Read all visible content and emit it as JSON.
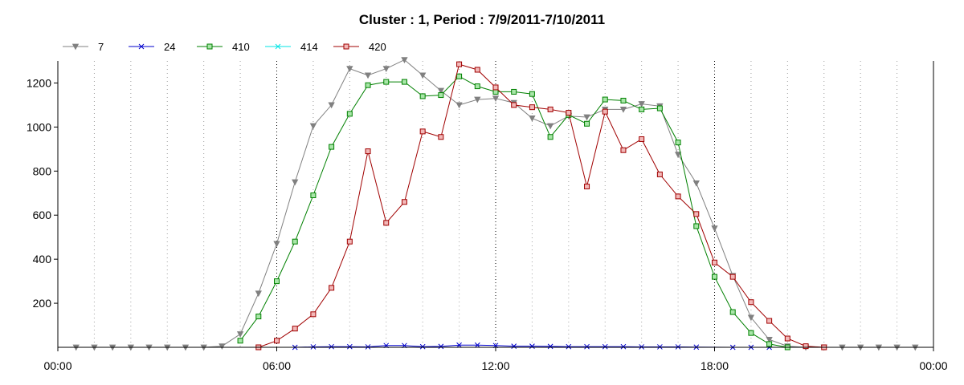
{
  "chart_data": {
    "type": "line",
    "title": "Cluster : 1, Period : 7/9/2011-7/10/2011",
    "xlabel": "",
    "ylabel": "",
    "xlim": [
      0,
      24
    ],
    "ylim": [
      0,
      1300
    ],
    "x_ticks": [
      0,
      6,
      12,
      18,
      24
    ],
    "x_tick_labels": [
      "00:00",
      "06:00",
      "12:00",
      "18:00",
      "00:00"
    ],
    "y_ticks": [
      200,
      400,
      600,
      800,
      1000,
      1200
    ],
    "y_tick_labels": [
      "200",
      "400",
      "600",
      "800",
      "1000",
      "1200"
    ],
    "grid": "vertical dotted",
    "legend_position": "top-left",
    "series": [
      {
        "name": "7",
        "color": "#808080",
        "marker": "triangle-down",
        "points": [
          [
            0.5,
            0
          ],
          [
            1.0,
            0
          ],
          [
            1.5,
            0
          ],
          [
            2.0,
            0
          ],
          [
            2.5,
            0
          ],
          [
            3.0,
            0
          ],
          [
            3.5,
            0
          ],
          [
            4.0,
            0
          ],
          [
            4.5,
            5
          ],
          [
            5.0,
            60
          ],
          [
            5.5,
            245
          ],
          [
            6.0,
            470
          ],
          [
            6.5,
            750
          ],
          [
            7.0,
            1005
          ],
          [
            7.5,
            1100
          ],
          [
            8.0,
            1265
          ],
          [
            8.5,
            1235
          ],
          [
            9.0,
            1265
          ],
          [
            9.5,
            1305
          ],
          [
            10.0,
            1235
          ],
          [
            10.5,
            1165
          ],
          [
            11.0,
            1100
          ],
          [
            11.5,
            1125
          ],
          [
            12.0,
            1130
          ],
          [
            12.5,
            1110
          ],
          [
            13.0,
            1040
          ],
          [
            13.5,
            1005
          ],
          [
            14.0,
            1050
          ],
          [
            14.5,
            1045
          ],
          [
            15.0,
            1080
          ],
          [
            15.5,
            1080
          ],
          [
            16.0,
            1105
          ],
          [
            16.5,
            1095
          ],
          [
            17.0,
            875
          ],
          [
            17.5,
            745
          ],
          [
            18.0,
            540
          ],
          [
            18.5,
            325
          ],
          [
            19.0,
            135
          ],
          [
            19.5,
            35
          ],
          [
            20.0,
            5
          ],
          [
            20.5,
            0
          ],
          [
            21.0,
            0
          ],
          [
            21.5,
            0
          ],
          [
            22.0,
            0
          ],
          [
            22.5,
            0
          ],
          [
            23.0,
            0
          ],
          [
            23.5,
            0
          ]
        ]
      },
      {
        "name": "24",
        "color": "#0000cc",
        "marker": "x",
        "points": [
          [
            6.5,
            0
          ],
          [
            7.0,
            2
          ],
          [
            7.5,
            3
          ],
          [
            8.0,
            3
          ],
          [
            8.5,
            2
          ],
          [
            9.0,
            8
          ],
          [
            9.5,
            8
          ],
          [
            10.0,
            3
          ],
          [
            10.5,
            4
          ],
          [
            11.0,
            10
          ],
          [
            11.5,
            10
          ],
          [
            12.0,
            8
          ],
          [
            12.5,
            5
          ],
          [
            13.0,
            5
          ],
          [
            13.5,
            4
          ],
          [
            14.0,
            3
          ],
          [
            14.5,
            3
          ],
          [
            15.0,
            3
          ],
          [
            15.5,
            3
          ],
          [
            16.0,
            2
          ],
          [
            16.5,
            2
          ],
          [
            17.0,
            2
          ],
          [
            17.5,
            1
          ],
          [
            18.5,
            0
          ],
          [
            19.0,
            0
          ],
          [
            19.5,
            0
          ]
        ]
      },
      {
        "name": "410",
        "color": "#008000",
        "fill": "#a8e6a8",
        "marker": "square",
        "points": [
          [
            5.0,
            30
          ],
          [
            5.5,
            140
          ],
          [
            6.0,
            300
          ],
          [
            6.5,
            480
          ],
          [
            7.0,
            690
          ],
          [
            7.5,
            910
          ],
          [
            8.0,
            1060
          ],
          [
            8.5,
            1190
          ],
          [
            9.0,
            1205
          ],
          [
            9.5,
            1205
          ],
          [
            10.0,
            1140
          ],
          [
            10.5,
            1145
          ],
          [
            11.0,
            1230
          ],
          [
            11.5,
            1185
          ],
          [
            12.0,
            1160
          ],
          [
            12.5,
            1160
          ],
          [
            13.0,
            1150
          ],
          [
            13.5,
            955
          ],
          [
            14.0,
            1055
          ],
          [
            14.5,
            1015
          ],
          [
            15.0,
            1125
          ],
          [
            15.5,
            1120
          ],
          [
            16.0,
            1080
          ],
          [
            16.5,
            1085
          ],
          [
            17.0,
            930
          ],
          [
            17.5,
            550
          ],
          [
            18.0,
            320
          ],
          [
            18.5,
            160
          ],
          [
            19.0,
            65
          ],
          [
            19.5,
            15
          ],
          [
            20.0,
            0
          ]
        ]
      },
      {
        "name": "414",
        "color": "#00e5e5",
        "marker": "x",
        "points": []
      },
      {
        "name": "420",
        "color": "#a00000",
        "fill": "#f2b8b8",
        "marker": "square",
        "points": [
          [
            5.5,
            0
          ],
          [
            6.0,
            30
          ],
          [
            6.5,
            85
          ],
          [
            7.0,
            150
          ],
          [
            7.5,
            270
          ],
          [
            8.0,
            480
          ],
          [
            8.5,
            890
          ],
          [
            9.0,
            565
          ],
          [
            9.5,
            660
          ],
          [
            10.0,
            980
          ],
          [
            10.5,
            955
          ],
          [
            11.0,
            1285
          ],
          [
            11.5,
            1260
          ],
          [
            12.0,
            1180
          ],
          [
            12.5,
            1100
          ],
          [
            13.0,
            1090
          ],
          [
            13.5,
            1080
          ],
          [
            14.0,
            1065
          ],
          [
            14.5,
            730
          ],
          [
            15.0,
            1070
          ],
          [
            15.5,
            895
          ],
          [
            16.0,
            945
          ],
          [
            16.5,
            785
          ],
          [
            17.0,
            685
          ],
          [
            17.5,
            605
          ],
          [
            18.0,
            385
          ],
          [
            18.5,
            320
          ],
          [
            19.0,
            205
          ],
          [
            19.5,
            120
          ],
          [
            20.0,
            40
          ],
          [
            20.5,
            5
          ],
          [
            21.0,
            0
          ]
        ]
      }
    ]
  }
}
